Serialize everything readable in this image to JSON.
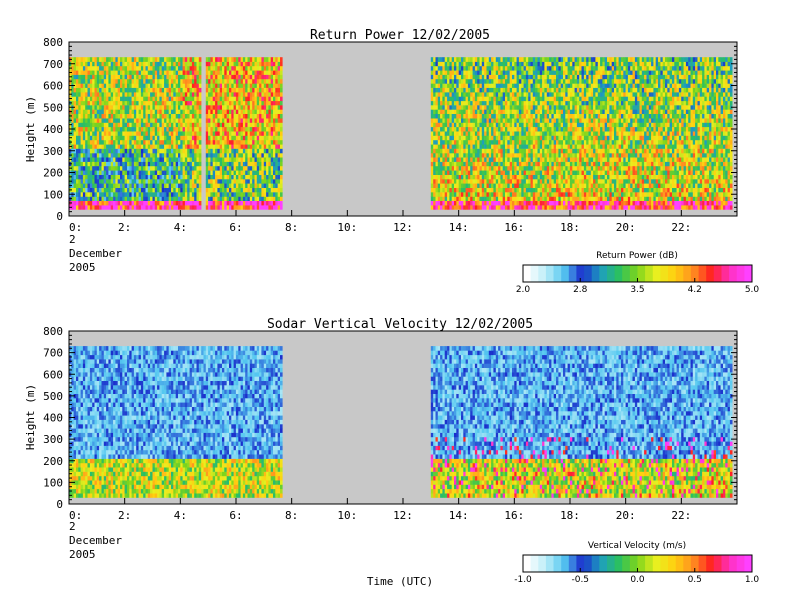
{
  "chart_data": [
    {
      "type": "heatmap",
      "title": "Return Power 12/02/2005",
      "ylabel": "Height (m)",
      "xlabel": "",
      "xlim": [
        0,
        24
      ],
      "ylim": [
        0,
        800
      ],
      "x_ticks": [
        "0:",
        "2:",
        "4:",
        "6:",
        "8:",
        "10:",
        "12:",
        "14:",
        "16:",
        "18:",
        "20:",
        "22:"
      ],
      "y_ticks": [
        "0",
        "100",
        "200",
        "300",
        "400",
        "500",
        "600",
        "700",
        "800"
      ],
      "date_label": [
        "2",
        "December",
        "2005"
      ],
      "data_segments": [
        {
          "start_hour": 0.0,
          "end_hour": 7.6,
          "top_height_m": 720
        },
        {
          "start_hour": 13.0,
          "end_hour": 23.8,
          "top_height_m": 720
        }
      ],
      "colorbar": {
        "label": "Return Power (dB)",
        "min": 2.0,
        "max": 5.0,
        "ticks": [
          "2.0",
          "2.8",
          "3.5",
          "4.2",
          "5.0"
        ]
      }
    },
    {
      "type": "heatmap",
      "title": "Sodar Vertical Velocity 12/02/2005",
      "ylabel": "Height (m)",
      "xlabel": "Time (UTC)",
      "xlim": [
        0,
        24
      ],
      "ylim": [
        0,
        800
      ],
      "x_ticks": [
        "0:",
        "2:",
        "4:",
        "6:",
        "8:",
        "10:",
        "12:",
        "14:",
        "16:",
        "18:",
        "20:",
        "22:"
      ],
      "y_ticks": [
        "0",
        "100",
        "200",
        "300",
        "400",
        "500",
        "600",
        "700",
        "800"
      ],
      "date_label": [
        "2",
        "December",
        "2005"
      ],
      "data_segments": [
        {
          "start_hour": 0.0,
          "end_hour": 7.6,
          "top_height_m": 720
        },
        {
          "start_hour": 13.0,
          "end_hour": 23.8,
          "top_height_m": 720
        }
      ],
      "colorbar": {
        "label": "Vertical Velocity (m/s)",
        "min": -1.0,
        "max": 1.0,
        "ticks": [
          "-1.0",
          "-0.5",
          "0.0",
          "0.5",
          "1.0"
        ]
      }
    }
  ],
  "colors": {
    "background": "#c8c8c8",
    "colormap": [
      "#ffffff",
      "#bfeef8",
      "#55c8f0",
      "#1a2ecc",
      "#1e9ec0",
      "#2bc060",
      "#7ed41c",
      "#e8f020",
      "#ffd010",
      "#ff9020",
      "#ff2020",
      "#ff30c0",
      "#ff40ff"
    ]
  }
}
